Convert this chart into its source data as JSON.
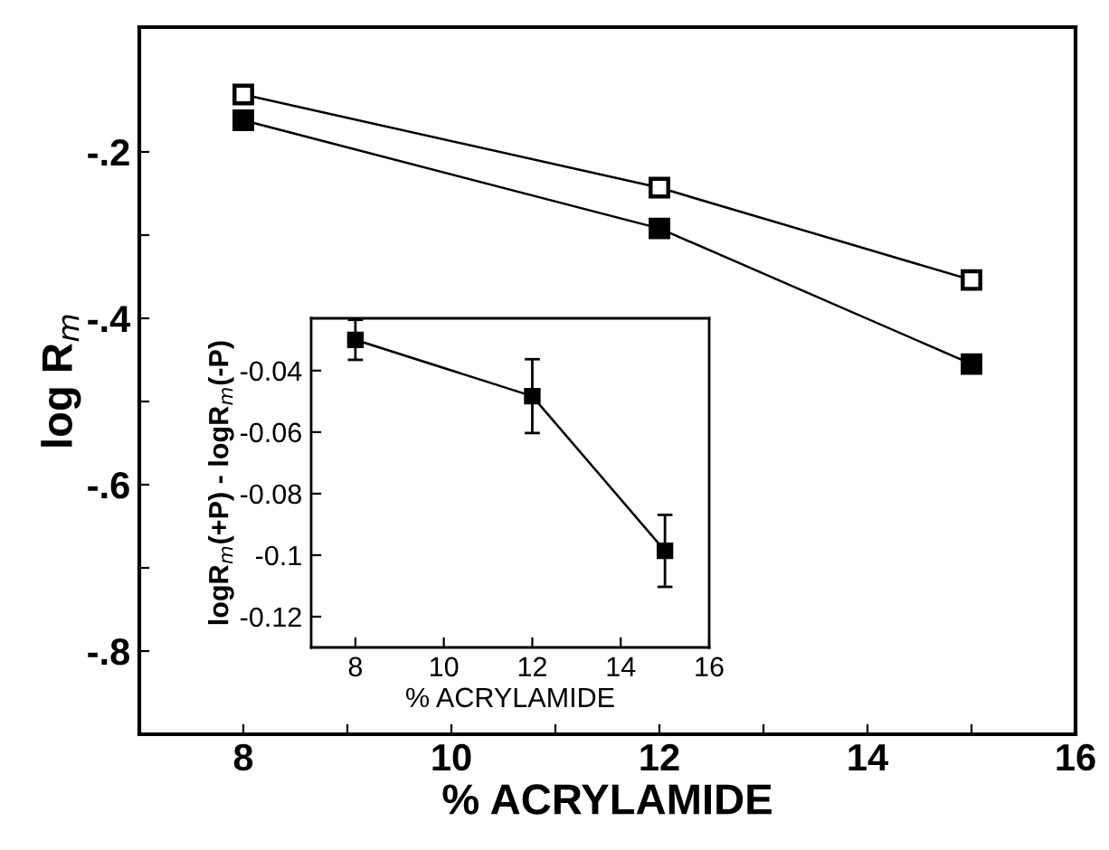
{
  "chart_data": [
    {
      "type": "line",
      "xlabel": "% ACRYLAMIDE",
      "ylabel": "log R$_{m}$",
      "x": [
        8,
        12,
        15
      ],
      "series": [
        {
          "color": "#ffffff",
          "values": [
            -0.131,
            -0.243,
            -0.354
          ],
          "marker": "square"
        },
        {
          "color": "#000000",
          "values": [
            -0.162,
            -0.292,
            -0.455
          ],
          "marker": "square"
        }
      ],
      "xlim": [
        7,
        16
      ],
      "ylim": [
        -0.9,
        -0.05
      ],
      "xticks": [
        8,
        {
          "value": 9,
          "label": null
        },
        10,
        {
          "value": 11,
          "label": null
        },
        12,
        {
          "value": 13,
          "label": null
        },
        14,
        {
          "value": 15,
          "label": null
        },
        16
      ],
      "yticks": [
        {
          "value": -0.2,
          "label": "-.2"
        },
        {
          "value": -0.3,
          "label": null
        },
        {
          "value": -0.4,
          "label": "-.4"
        },
        {
          "value": -0.5,
          "label": null
        },
        {
          "value": -0.6,
          "label": "-.6"
        },
        {
          "value": -0.7,
          "label": null
        },
        {
          "value": -0.8,
          "label": "-.8"
        }
      ],
      "grid": false,
      "legend": false,
      "line_style": "solid"
    },
    {
      "type": "line",
      "xlabel": "% ACRYLAMIDE",
      "ylabel": "logR$_{m}$(+P) - logR$_{m}$(-P)",
      "x": [
        8,
        12,
        15
      ],
      "series": [
        {
          "color": "#000000",
          "values": [
            -0.03,
            -0.0483,
            -0.0986
          ],
          "errors": [
            0.0065,
            0.012,
            0.0117
          ],
          "marker": "square"
        }
      ],
      "xlim": [
        7,
        16
      ],
      "ylim": [
        -0.13,
        -0.023
      ],
      "xticks": [
        8,
        10,
        12,
        14,
        16
      ],
      "yticks": [
        -0.04,
        -0.06,
        -0.08,
        -0.1,
        -0.12
      ],
      "grid": false,
      "legend": false,
      "line_style": "solid"
    }
  ]
}
